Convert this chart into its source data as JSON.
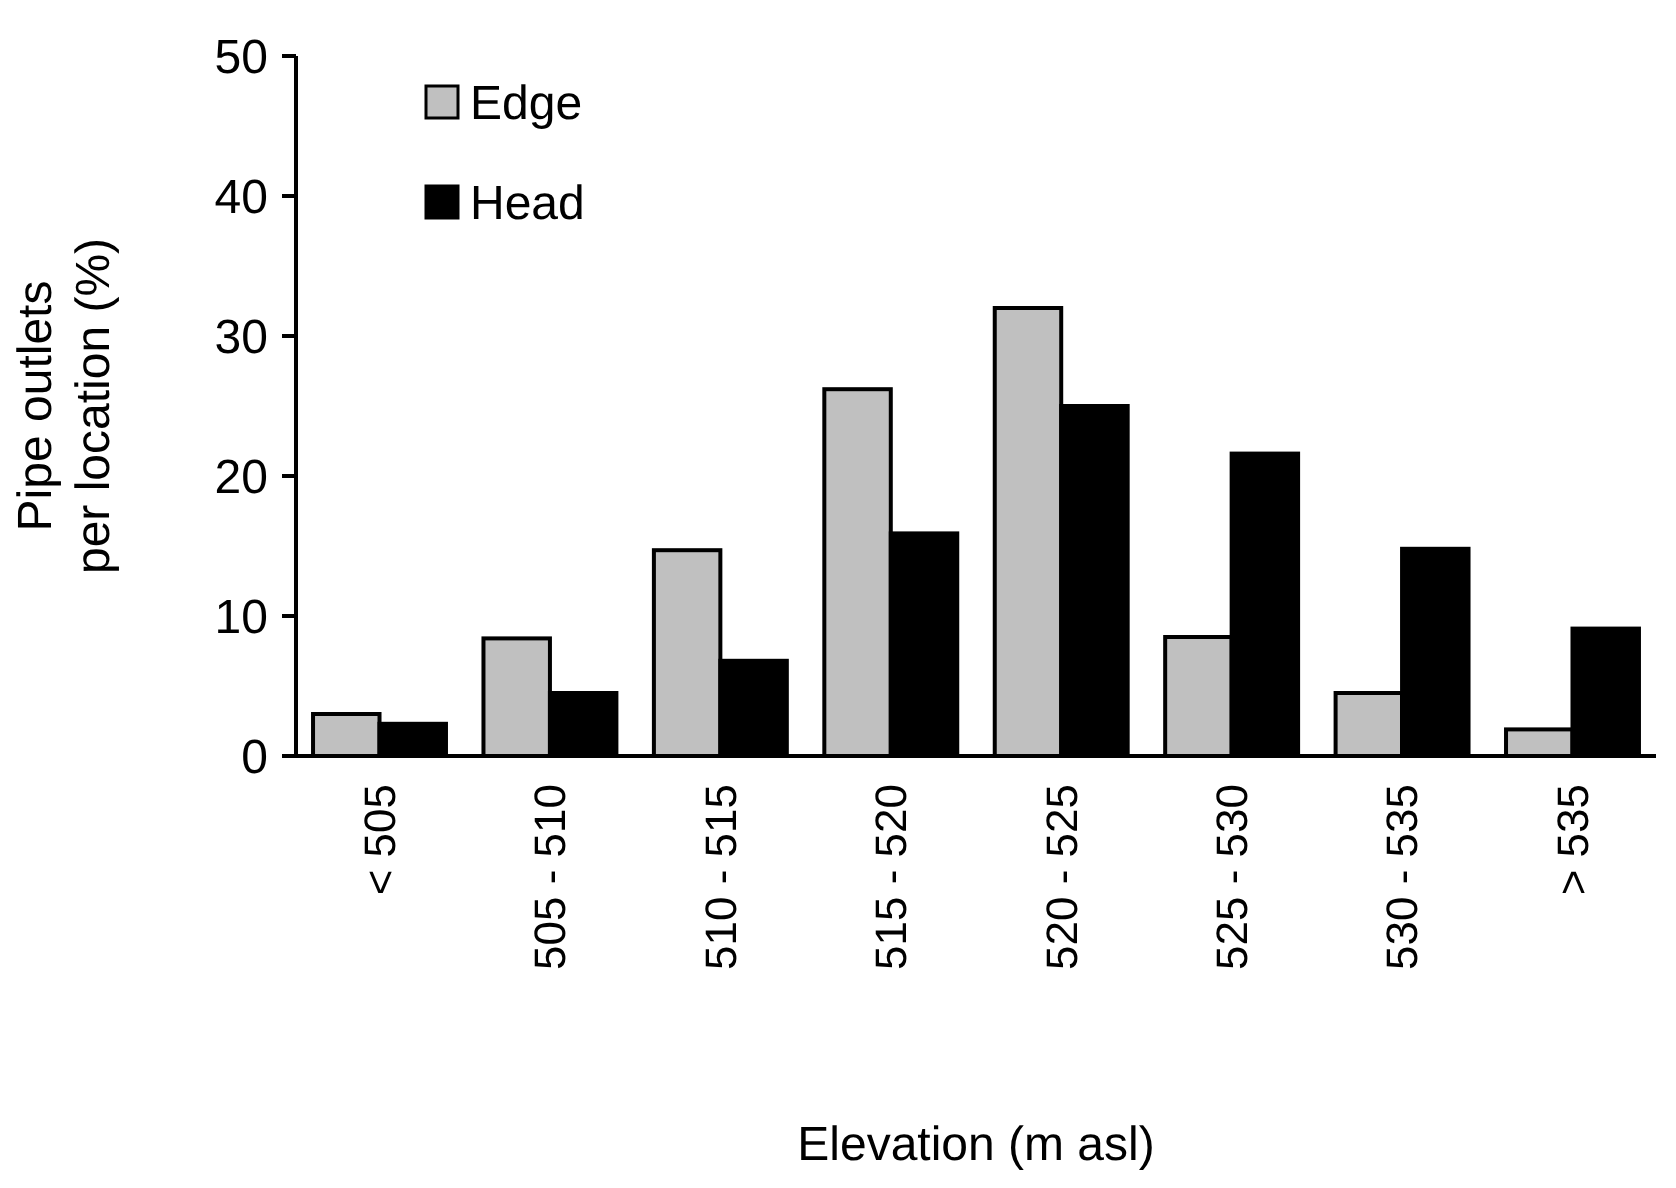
{
  "chart_data": {
    "type": "bar",
    "xlabel": "Elevation (m asl)",
    "ylabel": "Pipe outlets\nper location (%)",
    "categories": [
      "< 505",
      "505 - 510",
      "510 - 515",
      "515 - 520",
      "520 - 525",
      "525 - 530",
      "530 - 535",
      "> 535"
    ],
    "series": [
      {
        "name": "Edge",
        "color": "#c0c0c0",
        "values": [
          3.0,
          8.4,
          14.7,
          26.2,
          32.0,
          8.5,
          4.5,
          1.9
        ]
      },
      {
        "name": "Head",
        "color": "#000000",
        "values": [
          2.3,
          4.5,
          6.8,
          15.9,
          25.0,
          21.6,
          14.8,
          9.1
        ]
      }
    ],
    "ylim": [
      0,
      50
    ],
    "yticks": [
      0,
      10,
      20,
      30,
      40,
      50
    ],
    "grid": false,
    "legend": "top left"
  }
}
